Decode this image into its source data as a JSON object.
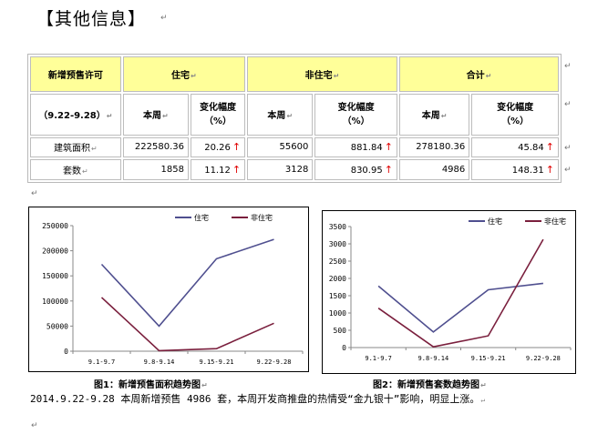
{
  "heading": "【其他信息】",
  "table": {
    "h_permit": "新增预售许可",
    "h_residential": "住宅",
    "h_nonresidential": "非住宅",
    "h_total": "合计",
    "period": "（9.22-9.28）",
    "this_week": "本周",
    "change_a": "变化幅度",
    "change_b": "（%）",
    "rows": [
      {
        "label": "建筑面积",
        "res_week": "222580.36",
        "res_chg": "20.26",
        "non_week": "55600",
        "non_chg": "881.84",
        "tot_week": "278180.36",
        "tot_chg": "45.84"
      },
      {
        "label": "套数",
        "res_week": "1858",
        "res_chg": "11.12",
        "non_week": "3128",
        "non_chg": "830.95",
        "tot_week": "4986",
        "tot_chg": "148.31"
      }
    ]
  },
  "charts": {
    "caption1": "图1：新增预售面积趋势图",
    "caption2": "图2：新增预售套数趋势图"
  },
  "chart_data": [
    {
      "type": "line",
      "x": [
        "9.1-9.7",
        "9.8-9.14",
        "9.15-9.21",
        "9.22-9.28"
      ],
      "series": [
        {
          "name": "住宅",
          "values": [
            173000,
            50000,
            184000,
            222580
          ],
          "color": "#4f4f8f"
        },
        {
          "name": "非住宅",
          "values": [
            107000,
            1000,
            5000,
            55600
          ],
          "color": "#7a1f3d"
        }
      ],
      "ylim": [
        0,
        250000
      ],
      "yticks": [
        "0",
        "50000",
        "100000",
        "150000",
        "200000",
        "250000"
      ],
      "legend": "top",
      "grid": false
    },
    {
      "type": "line",
      "x": [
        "9.1-9.7",
        "9.8-9.14",
        "9.15-9.21",
        "9.22-9.28"
      ],
      "series": [
        {
          "name": "住宅",
          "values": [
            1780,
            450,
            1670,
            1858
          ],
          "color": "#4f4f8f"
        },
        {
          "name": "非住宅",
          "values": [
            1140,
            20,
            340,
            3128
          ],
          "color": "#7a1f3d"
        }
      ],
      "ylim": [
        0,
        3500
      ],
      "yticks": [
        "0",
        "500",
        "1000",
        "1500",
        "2000",
        "2500",
        "3000",
        "3500"
      ],
      "legend": "top",
      "grid": false
    }
  ],
  "paragraph": "2014.9.22-9.28 本周新增预售 4986 套，本周开发商推盘的热情受“金九银十”影响，明显上涨。",
  "return_mark": "↵"
}
